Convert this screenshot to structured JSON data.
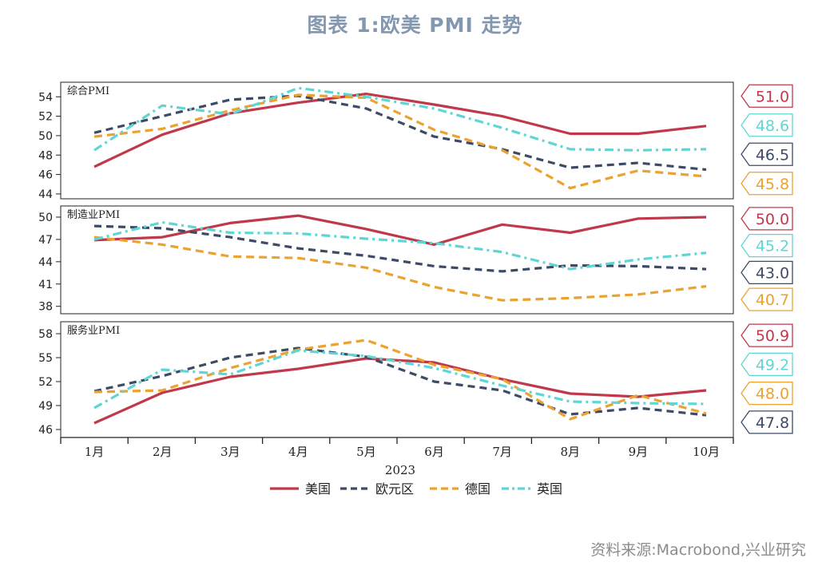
{
  "title": "图表 1:欧美 PMI 走势",
  "source": "资料来源:Macrobond,兴业研究",
  "colors": {
    "美国": "#c0394b",
    "欧元区": "#3d4b66",
    "德国": "#eba22f",
    "英国": "#5fd6d4"
  },
  "chart_data": {
    "type": "line",
    "x": [
      "1月",
      "2月",
      "3月",
      "4月",
      "5月",
      "6月",
      "7月",
      "8月",
      "9月",
      "10月"
    ],
    "xlabel": "2023",
    "legend": [
      "美国",
      "欧元区",
      "德国",
      "英国"
    ],
    "panels": [
      {
        "name": "综合PMI",
        "ylim": [
          43.5,
          55.5
        ],
        "yticks": [
          44,
          46,
          48,
          50,
          52,
          54
        ],
        "series": [
          {
            "name": "美国",
            "values": [
              46.8,
              50.1,
              52.3,
              53.4,
              54.3,
              53.2,
              52.0,
              50.2,
              50.2,
              51.0
            ]
          },
          {
            "name": "欧元区",
            "values": [
              50.3,
              52.0,
              53.7,
              54.1,
              52.8,
              49.9,
              48.6,
              46.7,
              47.2,
              46.5
            ]
          },
          {
            "name": "德国",
            "values": [
              49.9,
              50.7,
              52.6,
              54.2,
              53.9,
              50.6,
              48.5,
              44.6,
              46.4,
              45.8
            ]
          },
          {
            "name": "英国",
            "values": [
              48.5,
              53.1,
              52.2,
              54.9,
              54.0,
              52.8,
              50.8,
              48.6,
              48.5,
              48.6
            ]
          }
        ],
        "end_labels": [
          {
            "name": "美国",
            "text": "51.0"
          },
          {
            "name": "英国",
            "text": "48.6"
          },
          {
            "name": "欧元区",
            "text": "46.5"
          },
          {
            "name": "德国",
            "text": "45.8"
          }
        ]
      },
      {
        "name": "制造业PMI",
        "ylim": [
          37,
          51.5
        ],
        "yticks": [
          38,
          41,
          44,
          47,
          50
        ],
        "series": [
          {
            "name": "美国",
            "values": [
              46.9,
              47.3,
              49.2,
              50.2,
              48.4,
              46.3,
              49.0,
              47.9,
              49.8,
              50.0
            ]
          },
          {
            "name": "欧元区",
            "values": [
              48.8,
              48.5,
              47.3,
              45.8,
              44.8,
              43.4,
              42.7,
              43.5,
              43.4,
              43.0
            ]
          },
          {
            "name": "德国",
            "values": [
              47.3,
              46.3,
              44.7,
              44.5,
              43.2,
              40.6,
              38.8,
              39.1,
              39.6,
              40.7
            ]
          },
          {
            "name": "英国",
            "values": [
              47.0,
              49.3,
              47.9,
              47.8,
              47.1,
              46.5,
              45.3,
              43.0,
              44.3,
              45.2
            ]
          }
        ],
        "end_labels": [
          {
            "name": "美国",
            "text": "50.0"
          },
          {
            "name": "英国",
            "text": "45.2"
          },
          {
            "name": "欧元区",
            "text": "43.0"
          },
          {
            "name": "德国",
            "text": "40.7"
          }
        ]
      },
      {
        "name": "服务业PMI",
        "ylim": [
          45,
          59.5
        ],
        "yticks": [
          46,
          49,
          52,
          55,
          58
        ],
        "series": [
          {
            "name": "美国",
            "values": [
              46.8,
              50.6,
              52.6,
              53.6,
              54.9,
              54.4,
              52.3,
              50.5,
              50.1,
              50.9
            ]
          },
          {
            "name": "欧元区",
            "values": [
              50.8,
              52.7,
              55.0,
              56.2,
              55.1,
              52.0,
              50.9,
              47.9,
              48.7,
              47.8
            ]
          },
          {
            "name": "德国",
            "values": [
              50.7,
              50.9,
              53.7,
              56.0,
              57.2,
              54.1,
              52.3,
              47.3,
              50.3,
              48.0
            ]
          },
          {
            "name": "英国",
            "values": [
              48.7,
              53.5,
              52.9,
              55.9,
              55.2,
              53.7,
              51.5,
              49.5,
              49.3,
              49.2
            ]
          }
        ],
        "end_labels": [
          {
            "name": "美国",
            "text": "50.9"
          },
          {
            "name": "英国",
            "text": "49.2"
          },
          {
            "name": "德国",
            "text": "48.0"
          },
          {
            "name": "欧元区",
            "text": "47.8"
          }
        ]
      }
    ]
  }
}
